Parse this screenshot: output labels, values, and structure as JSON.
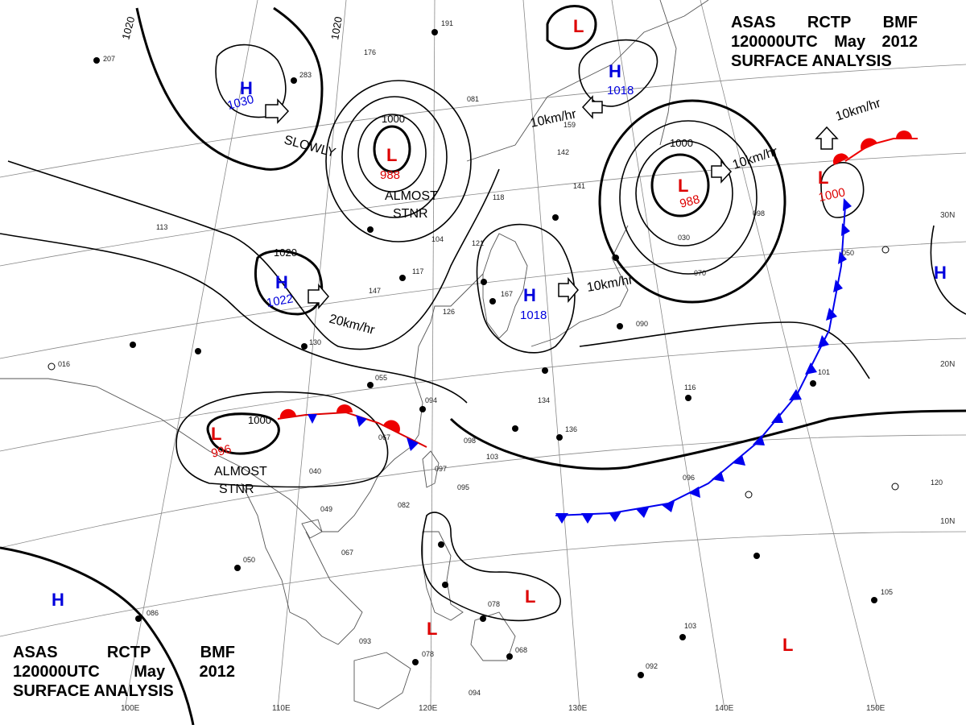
{
  "header": {
    "line1": [
      "ASAS",
      "RCTP",
      "BMF"
    ],
    "line2": [
      "120000UTC",
      "May",
      "2012"
    ],
    "line3": "SURFACE ANALYSIS"
  },
  "footer": {
    "line1": [
      "ASAS",
      "RCTP",
      "BMF"
    ],
    "line2": [
      "120000UTC",
      "May",
      "2012"
    ],
    "line3": "SURFACE ANALYSIS"
  },
  "colors": {
    "high": "#0000dd",
    "low": "#dd0000",
    "cold_front": "#0000ee",
    "warm_front": "#ee0000",
    "isobar": "#000000",
    "coast": "#555555",
    "grid": "#777777"
  },
  "pressure_systems": [
    {
      "id": "h-1030",
      "type": "H",
      "value": "1030",
      "system_color": "high"
    },
    {
      "id": "h-1022",
      "type": "H",
      "value": "1022",
      "system_color": "high"
    },
    {
      "id": "h-1018-a",
      "type": "H",
      "value": "1018",
      "system_color": "high"
    },
    {
      "id": "h-1018-b",
      "type": "H",
      "value": "1018",
      "system_color": "high"
    },
    {
      "id": "h-west",
      "type": "H",
      "value": "",
      "system_color": "high"
    },
    {
      "id": "h-east",
      "type": "H",
      "value": "",
      "system_color": "high"
    },
    {
      "id": "l-988-a",
      "type": "L",
      "value": "988",
      "system_color": "low"
    },
    {
      "id": "l-988-b",
      "type": "L",
      "value": "988",
      "system_color": "low"
    },
    {
      "id": "l-1000",
      "type": "L",
      "value": "1000",
      "system_color": "low"
    },
    {
      "id": "l-996",
      "type": "L",
      "value": "996",
      "system_color": "low"
    },
    {
      "id": "l-north",
      "type": "L",
      "value": "",
      "system_color": "low"
    },
    {
      "id": "l-phil-1",
      "type": "L",
      "value": "",
      "system_color": "low"
    },
    {
      "id": "l-phil-2",
      "type": "L",
      "value": "",
      "system_color": "low"
    },
    {
      "id": "l-pacific",
      "type": "L",
      "value": "",
      "system_color": "low"
    }
  ],
  "motion_labels": [
    {
      "id": "slowly",
      "text": "SLOWLY"
    },
    {
      "id": "almost-stnr-1",
      "text": "ALMOST"
    },
    {
      "id": "almost-stnr-1b",
      "text": "STNR"
    },
    {
      "id": "almost-stnr-2",
      "text": "ALMOST"
    },
    {
      "id": "almost-stnr-2b",
      "text": "STNR"
    },
    {
      "id": "speed-20",
      "text": "20km/hr"
    },
    {
      "id": "speed-10-a",
      "text": "10km/hr"
    },
    {
      "id": "speed-10-b",
      "text": "10km/hr"
    },
    {
      "id": "speed-10-c",
      "text": "10km/hr"
    },
    {
      "id": "speed-10-d",
      "text": "10km/hr"
    }
  ],
  "isobar_labels": [
    {
      "id": "iso-1020-a",
      "text": "1020"
    },
    {
      "id": "iso-1020-b",
      "text": "1020"
    },
    {
      "id": "iso-1020-c",
      "text": "1020"
    },
    {
      "id": "iso-1000-a",
      "text": "1000"
    },
    {
      "id": "iso-1000-b",
      "text": "1000"
    },
    {
      "id": "iso-1000-c",
      "text": "1000"
    }
  ],
  "graticule": {
    "longitudes": [
      "100E",
      "110E",
      "120E",
      "130E",
      "140E",
      "150E"
    ],
    "latitudes": [
      "30N",
      "20N",
      "10N"
    ]
  },
  "station_samples": [
    {
      "id": "st-1",
      "text": "207"
    },
    {
      "id": "st-2",
      "text": "283"
    },
    {
      "id": "st-3",
      "text": "176"
    },
    {
      "id": "st-4",
      "text": "191"
    },
    {
      "id": "st-5",
      "text": "081"
    },
    {
      "id": "st-6",
      "text": "118"
    },
    {
      "id": "st-7",
      "text": "104"
    },
    {
      "id": "st-8",
      "text": "121"
    },
    {
      "id": "st-9",
      "text": "147"
    },
    {
      "id": "st-10",
      "text": "055"
    },
    {
      "id": "st-11",
      "text": "094"
    },
    {
      "id": "st-12",
      "text": "067"
    },
    {
      "id": "st-13",
      "text": "098"
    },
    {
      "id": "st-14",
      "text": "097"
    },
    {
      "id": "st-15",
      "text": "095"
    },
    {
      "id": "st-16",
      "text": "103"
    },
    {
      "id": "st-17",
      "text": "082"
    },
    {
      "id": "st-18",
      "text": "049"
    },
    {
      "id": "st-19",
      "text": "067"
    },
    {
      "id": "st-20",
      "text": "050"
    },
    {
      "id": "st-21",
      "text": "086"
    },
    {
      "id": "st-22",
      "text": "093"
    },
    {
      "id": "st-23",
      "text": "078"
    },
    {
      "id": "st-24",
      "text": "068"
    },
    {
      "id": "st-25",
      "text": "094"
    },
    {
      "id": "st-26",
      "text": "078"
    },
    {
      "id": "st-27",
      "text": "134"
    },
    {
      "id": "st-28",
      "text": "136"
    },
    {
      "id": "st-29",
      "text": "116"
    },
    {
      "id": "st-30",
      "text": "101"
    },
    {
      "id": "st-31",
      "text": "096"
    },
    {
      "id": "st-32",
      "text": "103"
    },
    {
      "id": "st-33",
      "text": "092"
    },
    {
      "id": "st-34",
      "text": "105"
    },
    {
      "id": "st-35",
      "text": "120"
    },
    {
      "id": "st-36",
      "text": "090"
    },
    {
      "id": "st-37",
      "text": "070"
    },
    {
      "id": "st-38",
      "text": "030"
    },
    {
      "id": "st-39",
      "text": "098"
    },
    {
      "id": "st-40",
      "text": "050"
    },
    {
      "id": "st-41",
      "text": "159"
    },
    {
      "id": "st-42",
      "text": "142"
    },
    {
      "id": "st-43",
      "text": "141"
    },
    {
      "id": "st-44",
      "text": "117"
    },
    {
      "id": "st-45",
      "text": "016"
    },
    {
      "id": "st-46",
      "text": "167"
    },
    {
      "id": "st-47",
      "text": "126"
    },
    {
      "id": "st-48",
      "text": "130"
    },
    {
      "id": "st-49",
      "text": "113"
    },
    {
      "id": "st-50",
      "text": "040"
    }
  ]
}
